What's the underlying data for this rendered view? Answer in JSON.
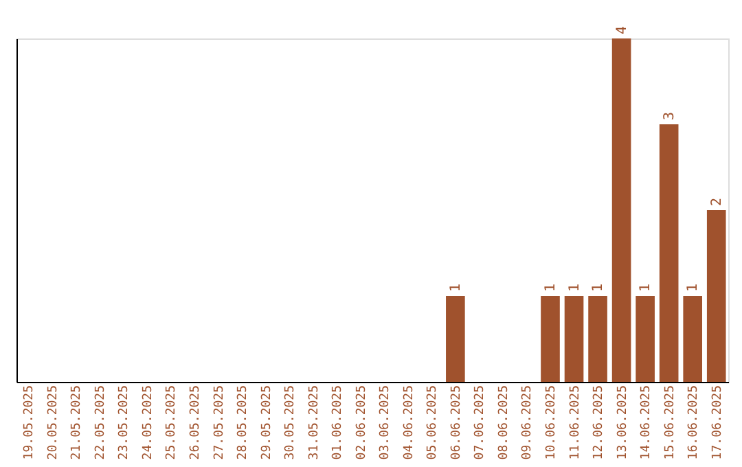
{
  "chart_data": {
    "type": "bar",
    "categories": [
      "19.05.2025",
      "20.05.2025",
      "21.05.2025",
      "22.05.2025",
      "23.05.2025",
      "24.05.2025",
      "25.05.2025",
      "26.05.2025",
      "27.05.2025",
      "28.05.2025",
      "29.05.2025",
      "30.05.2025",
      "31.05.2025",
      "01.06.2025",
      "02.06.2025",
      "03.06.2025",
      "04.06.2025",
      "05.06.2025",
      "06.06.2025",
      "07.06.2025",
      "08.06.2025",
      "09.06.2025",
      "10.06.2025",
      "11.06.2025",
      "12.06.2025",
      "13.06.2025",
      "14.06.2025",
      "15.06.2025",
      "16.06.2025",
      "17.06.2025"
    ],
    "values": [
      null,
      null,
      null,
      null,
      null,
      null,
      null,
      null,
      null,
      null,
      null,
      null,
      null,
      null,
      null,
      null,
      null,
      null,
      1,
      null,
      null,
      null,
      1,
      1,
      1,
      4,
      1,
      3,
      1,
      2
    ],
    "data_labels": true,
    "color": "#a0522d",
    "tick_labels": "x",
    "grid": false
  }
}
